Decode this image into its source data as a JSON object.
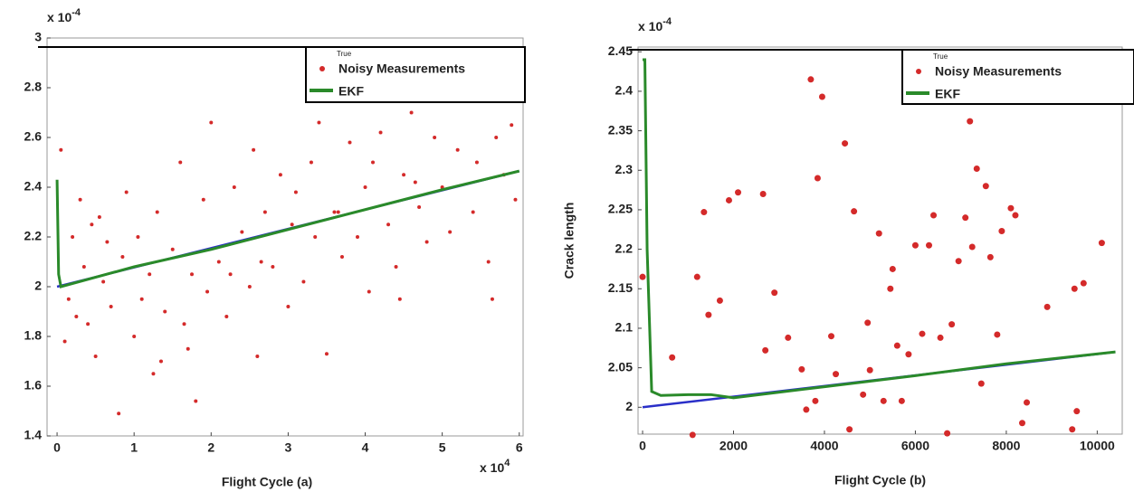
{
  "chart_data": [
    {
      "type": "scatter",
      "xlabel": "Flight Cycle (a)",
      "y_multiplier": {
        "base": "x 10",
        "exponent": "-4"
      },
      "x_multiplier": {
        "base": "x 10",
        "exponent": "4"
      },
      "xlim": [
        -0.13,
        6.05
      ],
      "ylim": [
        1.4,
        3
      ],
      "xticks": [
        0,
        1,
        2,
        3,
        4,
        5,
        6
      ],
      "yticks": [
        1.4,
        1.6,
        1.8,
        2,
        2.2,
        2.4,
        2.6,
        2.8,
        3
      ],
      "series": [
        {
          "name": "True",
          "color": "#2a2fc8",
          "mode": "line",
          "x": [
            0,
            6
          ],
          "values": [
            2.0,
            2.465
          ]
        },
        {
          "name": "Noisy Measurements",
          "color": "#d42a2a",
          "mode": "markers",
          "x": [
            0.05,
            0.1,
            0.15,
            0.2,
            0.25,
            0.3,
            0.35,
            0.4,
            0.5,
            0.55,
            0.6,
            0.7,
            0.8,
            0.85,
            0.9,
            1.0,
            1.05,
            1.1,
            1.2,
            1.25,
            1.3,
            1.4,
            1.5,
            1.6,
            1.7,
            1.75,
            1.8,
            1.9,
            1.95,
            2.0,
            2.1,
            2.2,
            2.3,
            2.4,
            2.5,
            2.55,
            2.6,
            2.7,
            2.8,
            2.9,
            3.0,
            3.05,
            3.1,
            3.2,
            3.3,
            3.4,
            3.5,
            3.6,
            3.7,
            3.8,
            3.9,
            4.0,
            4.05,
            4.1,
            4.2,
            4.3,
            4.4,
            4.5,
            4.6,
            4.7,
            4.8,
            4.9,
            5.0,
            5.1,
            5.2,
            5.3,
            5.4,
            5.5,
            5.6,
            5.7,
            5.8,
            5.9,
            5.95,
            0.45,
            1.35,
            2.25,
            3.35,
            4.45,
            5.45,
            0.65,
            1.65,
            2.65,
            3.65,
            4.65,
            5.65
          ],
          "values": [
            2.55,
            1.78,
            1.95,
            2.2,
            1.88,
            2.35,
            2.08,
            1.85,
            1.72,
            2.28,
            2.02,
            1.92,
            1.49,
            2.12,
            2.38,
            1.8,
            2.2,
            1.95,
            2.05,
            1.65,
            2.3,
            1.9,
            2.15,
            2.5,
            1.75,
            2.05,
            1.54,
            2.35,
            1.98,
            2.66,
            2.1,
            1.88,
            2.4,
            2.22,
            2.0,
            2.55,
            1.72,
            2.3,
            2.08,
            2.45,
            1.92,
            2.25,
            2.38,
            2.02,
            2.5,
            2.66,
            1.73,
            2.3,
            2.12,
            2.58,
            2.2,
            2.4,
            1.98,
            2.5,
            2.62,
            2.25,
            2.08,
            2.45,
            2.7,
            2.32,
            2.18,
            2.6,
            2.4,
            2.22,
            2.55,
            2.75,
            2.3,
            2.78,
            2.1,
            2.6,
            2.45,
            2.65,
            2.35,
            2.25,
            1.7,
            2.05,
            2.2,
            1.95,
            2.5,
            2.18,
            1.85,
            2.1,
            2.3,
            2.42,
            1.95
          ],
          "marker_size": 2
        },
        {
          "name": "EKF",
          "color": "#2a8a2a",
          "mode": "line",
          "x": [
            0,
            0.02,
            0.05,
            1,
            2,
            3,
            4,
            5,
            6
          ],
          "values": [
            2.43,
            2.05,
            2.0,
            2.08,
            2.15,
            2.23,
            2.31,
            2.39,
            2.465
          ]
        }
      ]
    },
    {
      "type": "scatter",
      "xlabel": "Flight Cycle (b)",
      "ylabel": "Crack length",
      "y_multiplier": {
        "base": "x 10",
        "exponent": "-4"
      },
      "xlim": [
        -100,
        10550
      ],
      "ylim": [
        1.966,
        2.456
      ],
      "xticks": [
        0,
        2000,
        4000,
        6000,
        8000,
        10000
      ],
      "yticks": [
        2,
        2.05,
        2.1,
        2.15,
        2.2,
        2.25,
        2.3,
        2.35,
        2.4,
        2.45
      ],
      "series": [
        {
          "name": "True",
          "color": "#2a2fc8",
          "mode": "line",
          "x": [
            0,
            10400
          ],
          "values": [
            2.0,
            2.07
          ]
        },
        {
          "name": "Noisy Measurements",
          "color": "#d42a2a",
          "mode": "markers",
          "x": [
            0,
            650,
            1100,
            1200,
            1350,
            1450,
            1700,
            1900,
            2100,
            2650,
            2700,
            2900,
            3200,
            3500,
            3600,
            3700,
            3800,
            3850,
            3950,
            4150,
            4250,
            4450,
            4550,
            4650,
            4850,
            4950,
            5000,
            5200,
            5300,
            5450,
            5500,
            5600,
            5700,
            5850,
            6000,
            6150,
            6300,
            6400,
            6550,
            6700,
            6800,
            6950,
            7100,
            7200,
            7250,
            7350,
            7450,
            7550,
            7650,
            7800,
            7900,
            8100,
            8200,
            8350,
            8450,
            8800,
            8900,
            9450,
            9500,
            9550,
            9700,
            10100
          ],
          "values": [
            2.165,
            2.063,
            1.965,
            2.165,
            2.247,
            2.117,
            2.135,
            2.262,
            2.272,
            2.27,
            2.072,
            2.145,
            2.088,
            2.048,
            1.997,
            2.415,
            2.008,
            2.29,
            2.393,
            2.09,
            2.042,
            2.334,
            1.972,
            2.248,
            2.016,
            2.107,
            2.047,
            2.22,
            2.008,
            2.15,
            2.175,
            2.078,
            2.008,
            2.067,
            2.205,
            2.093,
            2.205,
            2.243,
            2.088,
            1.967,
            2.105,
            2.185,
            2.24,
            2.362,
            2.203,
            2.302,
            2.03,
            2.28,
            2.19,
            2.092,
            2.223,
            2.252,
            2.243,
            1.98,
            2.006,
            2.392,
            2.127,
            1.972,
            2.15,
            1.995,
            2.157,
            2.208
          ],
          "marker_size": 3.5
        },
        {
          "name": "EKF",
          "color": "#2a8a2a",
          "mode": "line",
          "x": [
            0,
            50,
            100,
            200,
            400,
            1000,
            1500,
            2000,
            4000,
            6000,
            8000,
            10400
          ],
          "values": [
            2.44,
            2.44,
            2.2,
            2.02,
            2.015,
            2.016,
            2.016,
            2.012,
            2.026,
            2.04,
            2.055,
            2.07
          ]
        }
      ]
    }
  ]
}
